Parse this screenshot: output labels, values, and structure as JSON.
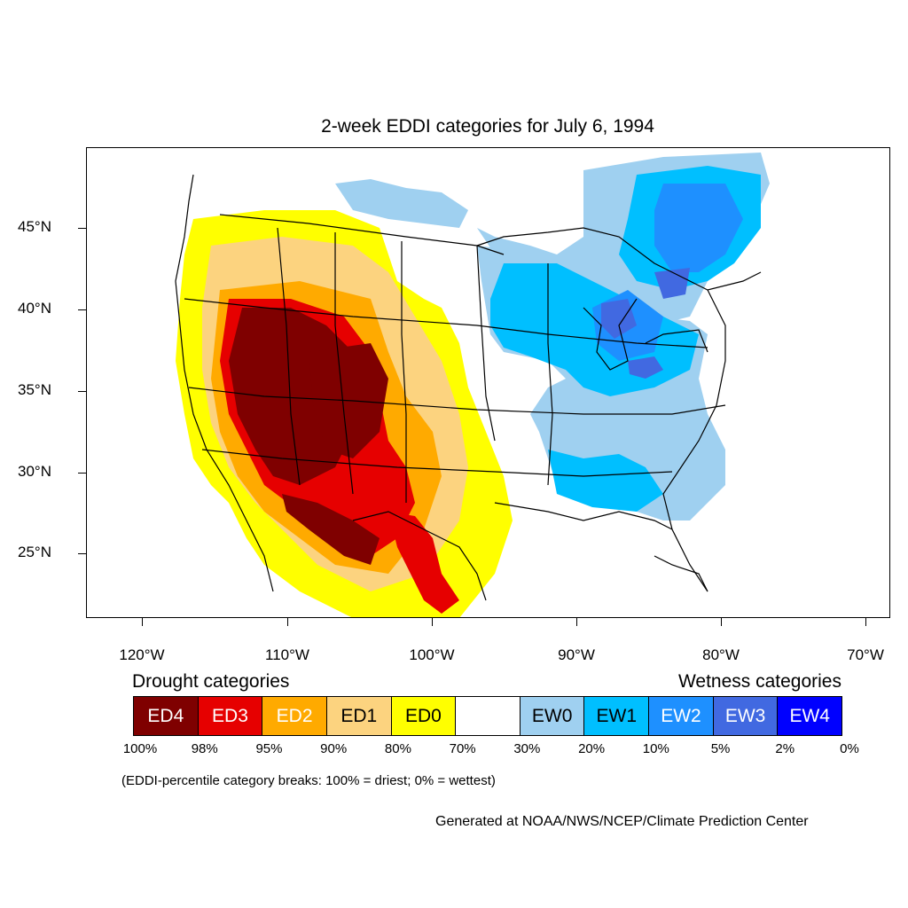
{
  "title": "2-week EDDI categories for July 6, 1994",
  "lat_labels": [
    "45°N",
    "40°N",
    "35°N",
    "30°N",
    "25°N"
  ],
  "lon_labels": [
    "120°W",
    "110°W",
    "100°W",
    "90°W",
    "80°W",
    "70°W"
  ],
  "legend": {
    "drought_heading": "Drought categories",
    "wetness_heading": "Wetness categories",
    "categories": [
      {
        "label": "ED4",
        "color": "#7f0000",
        "text_color": "#ffffff"
      },
      {
        "label": "ED3",
        "color": "#e60000",
        "text_color": "#ffffff"
      },
      {
        "label": "ED2",
        "color": "#ffaa00",
        "text_color": "#ffffff"
      },
      {
        "label": "ED1",
        "color": "#fcd37f",
        "text_color": "#000000"
      },
      {
        "label": "ED0",
        "color": "#ffff00",
        "text_color": "#000000"
      },
      {
        "label": "",
        "color": "#ffffff",
        "text_color": "#000000"
      },
      {
        "label": "EW0",
        "color": "#9fd0f0",
        "text_color": "#000000"
      },
      {
        "label": "EW1",
        "color": "#00bfff",
        "text_color": "#000000"
      },
      {
        "label": "EW2",
        "color": "#1e90ff",
        "text_color": "#ffffff"
      },
      {
        "label": "EW3",
        "color": "#4169e1",
        "text_color": "#ffffff"
      },
      {
        "label": "EW4",
        "color": "#0000ff",
        "text_color": "#ffffff"
      }
    ],
    "percentiles": [
      "100%",
      "98%",
      "95%",
      "90%",
      "80%",
      "70%",
      "30%",
      "20%",
      "10%",
      "5%",
      "2%",
      "0%"
    ],
    "note": "(EDDI-percentile category breaks: 100% = driest; 0% = wettest)"
  },
  "credit": "Generated at NOAA/NWS/NCEP/Climate Prediction Center"
}
